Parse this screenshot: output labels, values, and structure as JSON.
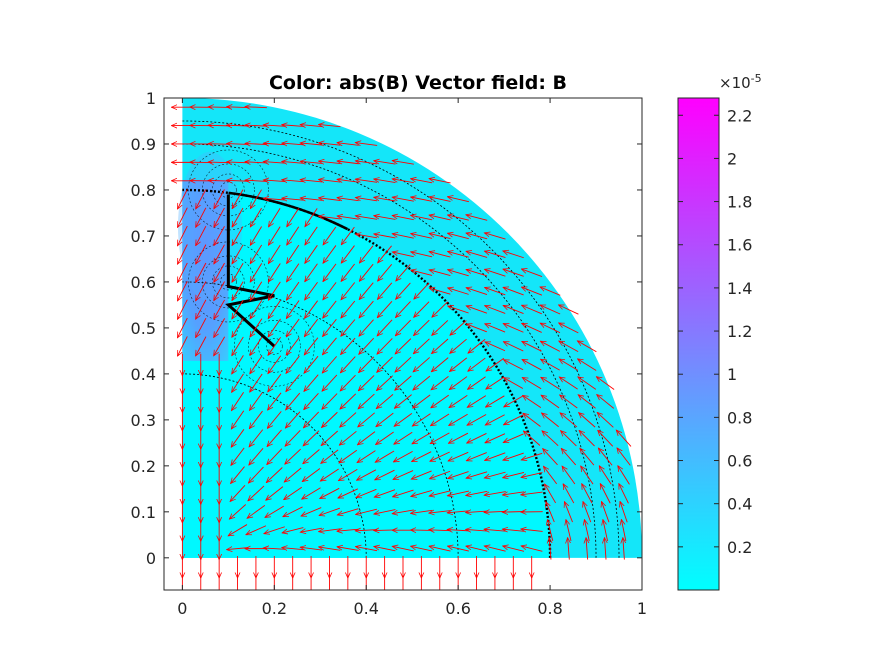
{
  "chart_data": {
    "type": "heatmap",
    "title": "Color: abs(B)  Vector field: B",
    "xlim": [
      -0.04,
      1.0
    ],
    "ylim": [
      -0.07,
      1.0
    ],
    "x_ticks": [
      {
        "value": 0,
        "label": "0"
      },
      {
        "value": 0.2,
        "label": "0.2"
      },
      {
        "value": 0.4,
        "label": "0.4"
      },
      {
        "value": 0.6,
        "label": "0.6"
      },
      {
        "value": 0.8,
        "label": "0.8"
      },
      {
        "value": 1.0,
        "label": "1"
      }
    ],
    "y_ticks": [
      {
        "value": 0,
        "label": "0"
      },
      {
        "value": 0.1,
        "label": "0.1"
      },
      {
        "value": 0.2,
        "label": "0.2"
      },
      {
        "value": 0.3,
        "label": "0.3"
      },
      {
        "value": 0.4,
        "label": "0.4"
      },
      {
        "value": 0.5,
        "label": "0.5"
      },
      {
        "value": 0.6,
        "label": "0.6"
      },
      {
        "value": 0.7,
        "label": "0.7"
      },
      {
        "value": 0.8,
        "label": "0.8"
      },
      {
        "value": 0.9,
        "label": "0.9"
      },
      {
        "value": 1.0,
        "label": "1"
      }
    ],
    "colorbar": {
      "range": [
        0,
        2.28
      ],
      "exponent_base": "×10",
      "exponent_power": "-5",
      "ticks": [
        {
          "value": 0.2,
          "label": "0.2"
        },
        {
          "value": 0.4,
          "label": "0.4"
        },
        {
          "value": 0.6,
          "label": "0.6"
        },
        {
          "value": 0.8,
          "label": "0.8"
        },
        {
          "value": 1.0,
          "label": "1"
        },
        {
          "value": 1.2,
          "label": "1.2"
        },
        {
          "value": 1.4,
          "label": "1.4"
        },
        {
          "value": 1.6,
          "label": "1.6"
        },
        {
          "value": 1.8,
          "label": "1.8"
        },
        {
          "value": 2.0,
          "label": "2"
        },
        {
          "value": 2.2,
          "label": "2.2"
        }
      ],
      "colormap": [
        "#00ffff",
        "#ff00ff"
      ]
    },
    "domain": {
      "outer_radius": 1.0,
      "inner_disk_radius": 0.8,
      "strip_x_range": [
        0,
        0.1
      ],
      "strip_y_range": [
        0.45,
        0.8
      ]
    },
    "field_colors": {
      "background_field": "#14e6f9",
      "inner_disk": "#00f8ff",
      "strip_high": "#6a86ff",
      "strip_mid": "#4fb0ff",
      "arrows": "#ff0000",
      "contours": "#000000"
    },
    "conductor_path": [
      [
        0.1,
        0.79
      ],
      [
        0.1,
        0.59
      ],
      [
        0.2,
        0.57
      ],
      [
        0.1,
        0.55
      ],
      [
        0.2,
        0.46
      ]
    ],
    "vector_grid_spacing": 0.04
  }
}
